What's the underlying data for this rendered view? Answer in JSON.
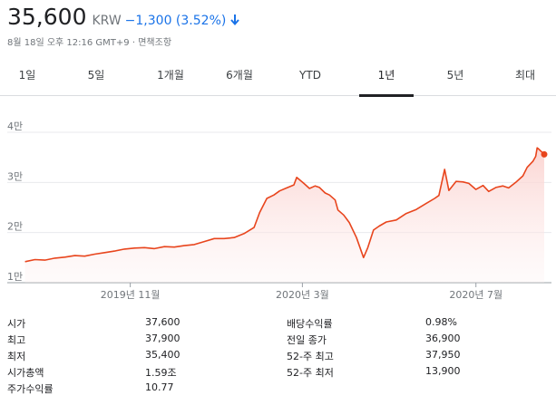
{
  "quote": {
    "price": "35,600",
    "currency": "KRW",
    "change": "−1,300 (3.52%)",
    "direction": "down",
    "timestamp": "8월 18일 오후 12:16 GMT+9",
    "separator": "·",
    "disclaimer": "면책조항"
  },
  "tabs": [
    {
      "label": "1일"
    },
    {
      "label": "5일"
    },
    {
      "label": "1개월"
    },
    {
      "label": "6개월"
    },
    {
      "label": "YTD"
    },
    {
      "label": "1년",
      "active": true
    },
    {
      "label": "5년"
    },
    {
      "label": "최대"
    }
  ],
  "colors": {
    "line": "#e8451d",
    "fill": "#fce4e3",
    "accent": "#1a73e8"
  },
  "chart_data": {
    "type": "area",
    "y_ticks": [
      "1만",
      "2만",
      "3만",
      "4만"
    ],
    "ylim": [
      10000,
      40000
    ],
    "x_labels": [
      "2019년 11월",
      "2020년 3월",
      "2020년 7월"
    ],
    "x_label_dates": [
      "2019-11-01",
      "2020-03-01",
      "2020-07-01"
    ],
    "x_range": [
      "2019-08-18",
      "2020-08-18"
    ],
    "series": [
      {
        "points": [
          [
            "2019-08-19",
            14200
          ],
          [
            "2019-08-26",
            14600
          ],
          [
            "2019-09-02",
            14500
          ],
          [
            "2019-09-09",
            14900
          ],
          [
            "2019-09-16",
            15100
          ],
          [
            "2019-09-23",
            15400
          ],
          [
            "2019-09-30",
            15300
          ],
          [
            "2019-10-07",
            15700
          ],
          [
            "2019-10-14",
            16000
          ],
          [
            "2019-10-21",
            16300
          ],
          [
            "2019-10-28",
            16700
          ],
          [
            "2019-11-04",
            16900
          ],
          [
            "2019-11-11",
            17000
          ],
          [
            "2019-11-18",
            16800
          ],
          [
            "2019-11-25",
            17200
          ],
          [
            "2019-12-02",
            17100
          ],
          [
            "2019-12-09",
            17400
          ],
          [
            "2019-12-16",
            17600
          ],
          [
            "2019-12-23",
            18200
          ],
          [
            "2019-12-30",
            18800
          ],
          [
            "2020-01-06",
            18800
          ],
          [
            "2020-01-13",
            19000
          ],
          [
            "2020-01-20",
            19800
          ],
          [
            "2020-01-27",
            21000
          ],
          [
            "2020-01-31",
            24000
          ],
          [
            "2020-02-05",
            26800
          ],
          [
            "2020-02-10",
            27500
          ],
          [
            "2020-02-14",
            28300
          ],
          [
            "2020-02-19",
            28900
          ],
          [
            "2020-02-24",
            29500
          ],
          [
            "2020-02-26",
            31000
          ],
          [
            "2020-03-02",
            29800
          ],
          [
            "2020-03-06",
            28800
          ],
          [
            "2020-03-10",
            29300
          ],
          [
            "2020-03-13",
            29000
          ],
          [
            "2020-03-17",
            27900
          ],
          [
            "2020-03-20",
            27500
          ],
          [
            "2020-03-24",
            26500
          ],
          [
            "2020-03-26",
            24500
          ],
          [
            "2020-03-30",
            23500
          ],
          [
            "2020-04-03",
            22000
          ],
          [
            "2020-04-08",
            19000
          ],
          [
            "2020-04-13",
            15000
          ],
          [
            "2020-04-16",
            17000
          ],
          [
            "2020-04-20",
            20500
          ],
          [
            "2020-04-24",
            21300
          ],
          [
            "2020-04-29",
            22100
          ],
          [
            "2020-05-06",
            22500
          ],
          [
            "2020-05-13",
            23800
          ],
          [
            "2020-05-20",
            24600
          ],
          [
            "2020-05-27",
            25800
          ],
          [
            "2020-06-02",
            26800
          ],
          [
            "2020-06-05",
            27400
          ],
          [
            "2020-06-09",
            32600
          ],
          [
            "2020-06-12",
            28400
          ],
          [
            "2020-06-17",
            30200
          ],
          [
            "2020-06-22",
            30100
          ],
          [
            "2020-06-26",
            29800
          ],
          [
            "2020-07-01",
            28600
          ],
          [
            "2020-07-06",
            29400
          ],
          [
            "2020-07-10",
            28200
          ],
          [
            "2020-07-15",
            29000
          ],
          [
            "2020-07-20",
            29300
          ],
          [
            "2020-07-24",
            28900
          ],
          [
            "2020-07-29",
            30000
          ],
          [
            "2020-08-03",
            31300
          ],
          [
            "2020-08-06",
            33000
          ],
          [
            "2020-08-10",
            34200
          ],
          [
            "2020-08-12",
            35200
          ],
          [
            "2020-08-13",
            36900
          ],
          [
            "2020-08-14",
            36700
          ],
          [
            "2020-08-18",
            35600
          ]
        ]
      }
    ]
  },
  "stats": {
    "left": [
      {
        "label": "시가",
        "value": "37,600"
      },
      {
        "label": "최고",
        "value": "37,900"
      },
      {
        "label": "최저",
        "value": "35,400"
      },
      {
        "label": "시가총액",
        "value": "1.59조"
      },
      {
        "label": "주가수익률",
        "value": "10.77"
      }
    ],
    "right": [
      {
        "label": "배당수익률",
        "value": "0.98%"
      },
      {
        "label": "전일 종가",
        "value": "36,900"
      },
      {
        "label": "52-주 최고",
        "value": "37,950"
      },
      {
        "label": "52-주 최저",
        "value": "13,900"
      }
    ]
  }
}
